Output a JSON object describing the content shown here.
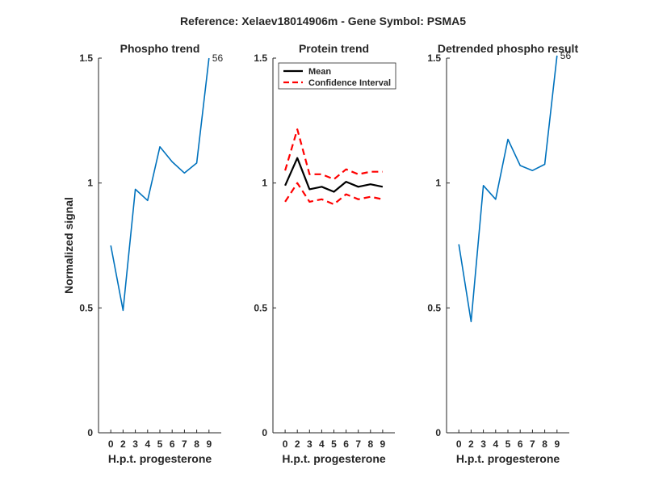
{
  "figure": {
    "title": "Reference:  Xelaev18014906m - Gene Symbol:  PSMA5"
  },
  "chart_data": [
    {
      "type": "line",
      "title": "Phospho trend",
      "xlabel": "H.p.t. progesterone",
      "ylabel": "Normalized signal",
      "x_ticks": [
        "0",
        "2",
        "3",
        "4",
        "5",
        "6",
        "7",
        "8",
        "9"
      ],
      "y_ticks": [
        "0",
        "0.5",
        "1",
        "1.5"
      ],
      "ylim": [
        0,
        1.5
      ],
      "grid": false,
      "series": [
        {
          "color": "#0072BD",
          "style": "solid",
          "values": [
            0.75,
            0.49,
            0.975,
            0.93,
            1.145,
            1.085,
            1.04,
            1.08,
            1.5
          ]
        }
      ],
      "annotations": [
        {
          "text": "56",
          "x_index": 8,
          "y": 1.5
        }
      ]
    },
    {
      "type": "line",
      "title": "Protein trend",
      "xlabel": "H.p.t. progesterone",
      "ylabel": "",
      "x_ticks": [
        "0",
        "2",
        "3",
        "4",
        "5",
        "6",
        "7",
        "8",
        "9"
      ],
      "y_ticks": [
        "0",
        "0.5",
        "1",
        "1.5"
      ],
      "ylim": [
        0,
        1.5
      ],
      "grid": false,
      "legend_position": "top-left",
      "series": [
        {
          "name": "Mean",
          "color": "#000000",
          "style": "solid",
          "in_legend": true,
          "values": [
            0.99,
            1.1,
            0.975,
            0.985,
            0.965,
            1.005,
            0.985,
            0.995,
            0.985
          ]
        },
        {
          "name": "Confidence Interval",
          "color": "#FF0000",
          "style": "dashed",
          "in_legend": true,
          "values": [
            1.05,
            1.215,
            1.035,
            1.035,
            1.015,
            1.055,
            1.035,
            1.045,
            1.045
          ]
        },
        {
          "name": "Confidence Interval",
          "color": "#FF0000",
          "style": "dashed",
          "in_legend": false,
          "values": [
            0.925,
            1.0,
            0.925,
            0.935,
            0.915,
            0.955,
            0.935,
            0.945,
            0.935
          ]
        }
      ]
    },
    {
      "type": "line",
      "title": "Detrended phospho result",
      "xlabel": "H.p.t. progesterone",
      "ylabel": "",
      "x_ticks": [
        "0",
        "2",
        "3",
        "4",
        "5",
        "6",
        "7",
        "8",
        "9"
      ],
      "y_ticks": [
        "0",
        "0.5",
        "1",
        "1.5"
      ],
      "ylim": [
        0,
        1.5
      ],
      "grid": false,
      "series": [
        {
          "color": "#0072BD",
          "style": "solid",
          "values": [
            0.755,
            0.445,
            0.99,
            0.935,
            1.175,
            1.07,
            1.05,
            1.075,
            1.51
          ]
        }
      ],
      "annotations": [
        {
          "text": "56",
          "x_index": 8,
          "y": 1.51
        }
      ]
    }
  ]
}
